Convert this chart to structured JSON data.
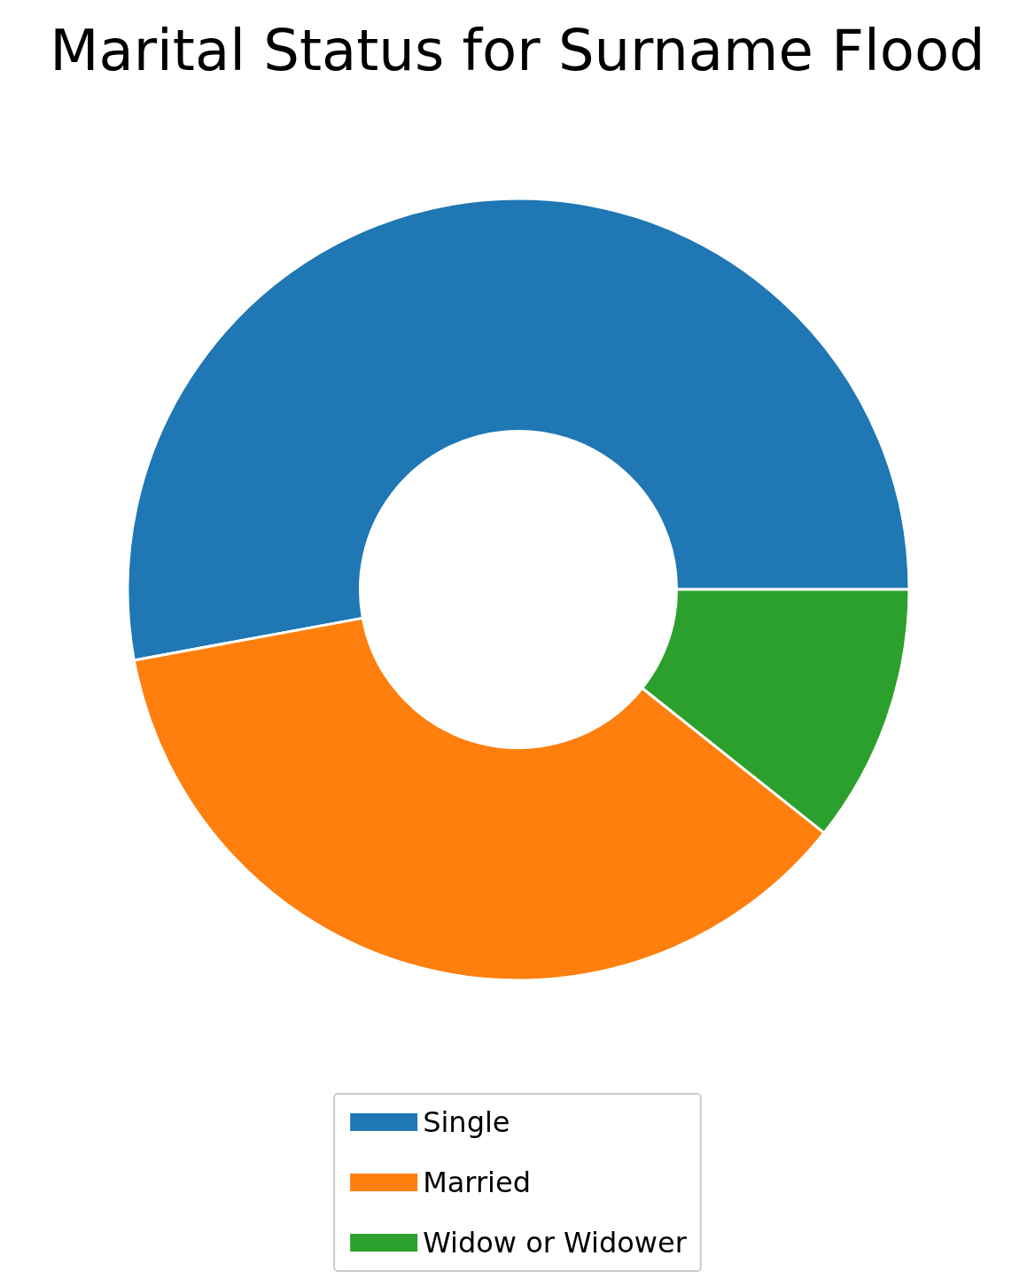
{
  "chart_data": {
    "type": "donut",
    "title": "Marital Status for Surname Flood",
    "categories": [
      "Single",
      "Married",
      "Widow or Widower"
    ],
    "values": [
      52.9,
      36.4,
      10.7
    ],
    "colors": [
      "#1f77b4",
      "#ff7f0e",
      "#2ca02c"
    ],
    "legend": "bottom"
  }
}
